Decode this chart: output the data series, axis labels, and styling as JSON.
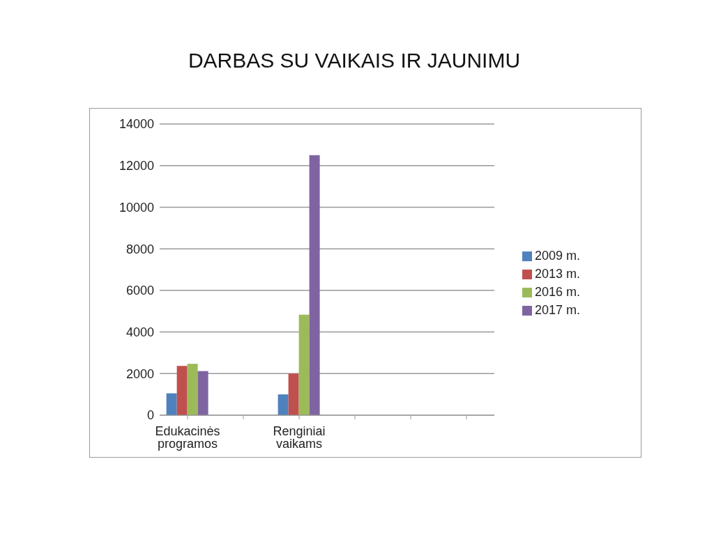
{
  "chart_data": {
    "type": "bar",
    "title": "DARBAS SU VAIKAIS IR JAUNIMU",
    "categories": [
      "Edukacinės programos",
      null,
      "Renginiai vaikams",
      null,
      null,
      null
    ],
    "series": [
      {
        "name": "2009 m.",
        "color": "#4f81bd",
        "values": [
          1050,
          null,
          1000,
          null,
          null,
          null
        ]
      },
      {
        "name": "2013 m.",
        "color": "#c0504d",
        "values": [
          2370,
          null,
          2000,
          null,
          null,
          null
        ]
      },
      {
        "name": "2016 m.",
        "color": "#9bbb59",
        "values": [
          2470,
          null,
          4830,
          null,
          null,
          null
        ]
      },
      {
        "name": "2017 m.",
        "color": "#8064a2",
        "values": [
          2120,
          null,
          12500,
          null,
          null,
          null
        ]
      }
    ],
    "ylim": [
      0,
      14000
    ],
    "yticks": [
      0,
      2000,
      4000,
      6000,
      8000,
      10000,
      12000,
      14000
    ],
    "grid": "y",
    "legend": "right"
  }
}
